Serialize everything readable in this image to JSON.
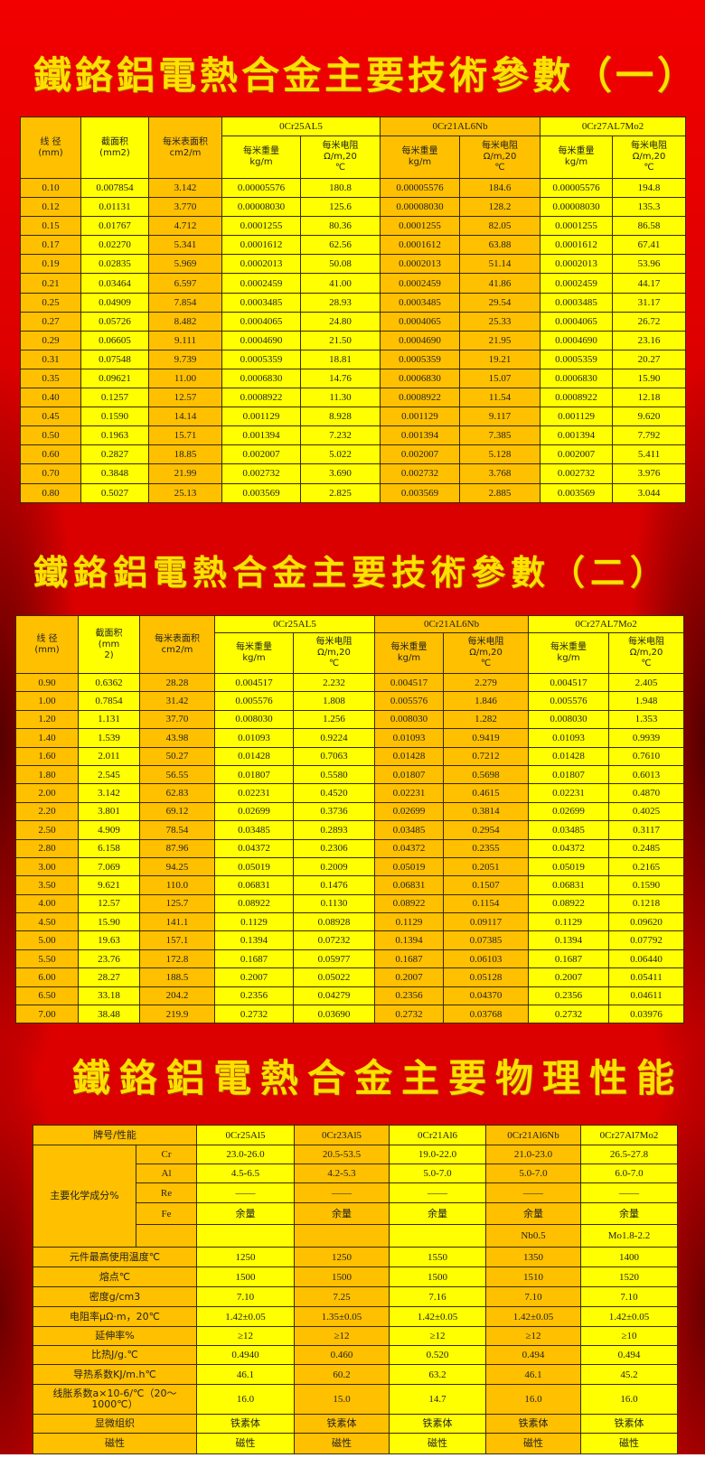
{
  "titles": {
    "t1": "鐵鉻鋁電熱合金主要技術參數（一）",
    "t2": "鐵鉻鋁電熱合金主要技術參數（二）",
    "t3": "鐵鉻鋁電熱合金主要物理性能"
  },
  "param_header": {
    "diameter": "线 径\n(mm)",
    "section_t1": "截面积\n(mm2)",
    "section_t2": "截面积\n(mm\n2)",
    "surface": "每米表面积\ncm2/m",
    "groups": [
      "0Cr25AL5",
      "0Cr21AL6Nb",
      "0Cr27AL7Mo2"
    ],
    "weight": "每米重量\nkg/m",
    "resistance": "每米电阻\nΩ/m,20\n℃"
  },
  "table1": {
    "rows": [
      [
        "0.10",
        "0.007854",
        "3.142",
        "0.00005576",
        "180.8",
        "0.00005576",
        "184.6",
        "0.00005576",
        "194.8"
      ],
      [
        "0.12",
        "0.01131",
        "3.770",
        "0.00008030",
        "125.6",
        "0.00008030",
        "128.2",
        "0.00008030",
        "135.3"
      ],
      [
        "0.15",
        "0.01767",
        "4.712",
        "0.0001255",
        "80.36",
        "0.0001255",
        "82.05",
        "0.0001255",
        "86.58"
      ],
      [
        "0.17",
        "0.02270",
        "5.341",
        "0.0001612",
        "62.56",
        "0.0001612",
        "63.88",
        "0.0001612",
        "67.41"
      ],
      [
        "0.19",
        "0.02835",
        "5.969",
        "0.0002013",
        "50.08",
        "0.0002013",
        "51.14",
        "0.0002013",
        "53.96"
      ],
      [
        "0.21",
        "0.03464",
        "6.597",
        "0.0002459",
        "41.00",
        "0.0002459",
        "41.86",
        "0.0002459",
        "44.17"
      ],
      [
        "0.25",
        "0.04909",
        "7.854",
        "0.0003485",
        "28.93",
        "0.0003485",
        "29.54",
        "0.0003485",
        "31.17"
      ],
      [
        "0.27",
        "0.05726",
        "8.482",
        "0.0004065",
        "24.80",
        "0.0004065",
        "25.33",
        "0.0004065",
        "26.72"
      ],
      [
        "0.29",
        "0.06605",
        "9.111",
        "0.0004690",
        "21.50",
        "0.0004690",
        "21.95",
        "0.0004690",
        "23.16"
      ],
      [
        "0.31",
        "0.07548",
        "9.739",
        "0.0005359",
        "18.81",
        "0.0005359",
        "19.21",
        "0.0005359",
        "20.27"
      ],
      [
        "0.35",
        "0.09621",
        "11.00",
        "0.0006830",
        "14.76",
        "0.0006830",
        "15.07",
        "0.0006830",
        "15.90"
      ],
      [
        "0.40",
        "0.1257",
        "12.57",
        "0.0008922",
        "11.30",
        "0.0008922",
        "11.54",
        "0.0008922",
        "12.18"
      ],
      [
        "0.45",
        "0.1590",
        "14.14",
        "0.001129",
        "8.928",
        "0.001129",
        "9.117",
        "0.001129",
        "9.620"
      ],
      [
        "0.50",
        "0.1963",
        "15.71",
        "0.001394",
        "7.232",
        "0.001394",
        "7.385",
        "0.001394",
        "7.792"
      ],
      [
        "0.60",
        "0.2827",
        "18.85",
        "0.002007",
        "5.022",
        "0.002007",
        "5.128",
        "0.002007",
        "5.411"
      ],
      [
        "0.70",
        "0.3848",
        "21.99",
        "0.002732",
        "3.690",
        "0.002732",
        "3.768",
        "0.002732",
        "3.976"
      ],
      [
        "0.80",
        "0.5027",
        "25.13",
        "0.003569",
        "2.825",
        "0.003569",
        "2.885",
        "0.003569",
        "3.044"
      ]
    ]
  },
  "table2": {
    "rows": [
      [
        "0.90",
        "0.6362",
        "28.28",
        "0.004517",
        "2.232",
        "0.004517",
        "2.279",
        "0.004517",
        "2.405"
      ],
      [
        "1.00",
        "0.7854",
        "31.42",
        "0.005576",
        "1.808",
        "0.005576",
        "1.846",
        "0.005576",
        "1.948"
      ],
      [
        "1.20",
        "1.131",
        "37.70",
        "0.008030",
        "1.256",
        "0.008030",
        "1.282",
        "0.008030",
        "1.353"
      ],
      [
        "1.40",
        "1.539",
        "43.98",
        "0.01093",
        "0.9224",
        "0.01093",
        "0.9419",
        "0.01093",
        "0.9939"
      ],
      [
        "1.60",
        "2.011",
        "50.27",
        "0.01428",
        "0.7063",
        "0.01428",
        "0.7212",
        "0.01428",
        "0.7610"
      ],
      [
        "1.80",
        "2.545",
        "56.55",
        "0.01807",
        "0.5580",
        "0.01807",
        "0.5698",
        "0.01807",
        "0.6013"
      ],
      [
        "2.00",
        "3.142",
        "62.83",
        "0.02231",
        "0.4520",
        "0.02231",
        "0.4615",
        "0.02231",
        "0.4870"
      ],
      [
        "2.20",
        "3.801",
        "69.12",
        "0.02699",
        "0.3736",
        "0.02699",
        "0.3814",
        "0.02699",
        "0.4025"
      ],
      [
        "2.50",
        "4.909",
        "78.54",
        "0.03485",
        "0.2893",
        "0.03485",
        "0.2954",
        "0.03485",
        "0.3117"
      ],
      [
        "2.80",
        "6.158",
        "87.96",
        "0.04372",
        "0.2306",
        "0.04372",
        "0.2355",
        "0.04372",
        "0.2485"
      ],
      [
        "3.00",
        "7.069",
        "94.25",
        "0.05019",
        "0.2009",
        "0.05019",
        "0.2051",
        "0.05019",
        "0.2165"
      ],
      [
        "3.50",
        "9.621",
        "110.0",
        "0.06831",
        "0.1476",
        "0.06831",
        "0.1507",
        "0.06831",
        "0.1590"
      ],
      [
        "4.00",
        "12.57",
        "125.7",
        "0.08922",
        "0.1130",
        "0.08922",
        "0.1154",
        "0.08922",
        "0.1218"
      ],
      [
        "4.50",
        "15.90",
        "141.1",
        "0.1129",
        "0.08928",
        "0.1129",
        "0.09117",
        "0.1129",
        "0.09620"
      ],
      [
        "5.00",
        "19.63",
        "157.1",
        "0.1394",
        "0.07232",
        "0.1394",
        "0.07385",
        "0.1394",
        "0.07792"
      ],
      [
        "5.50",
        "23.76",
        "172.8",
        "0.1687",
        "0.05977",
        "0.1687",
        "0.06103",
        "0.1687",
        "0.06440"
      ],
      [
        "6.00",
        "28.27",
        "188.5",
        "0.2007",
        "0.05022",
        "0.2007",
        "0.05128",
        "0.2007",
        "0.05411"
      ],
      [
        "6.50",
        "33.18",
        "204.2",
        "0.2356",
        "0.04279",
        "0.2356",
        "0.04370",
        "0.2356",
        "0.04611"
      ],
      [
        "7.00",
        "38.48",
        "219.9",
        "0.2732",
        "0.03690",
        "0.2732",
        "0.03768",
        "0.2732",
        "0.03976"
      ]
    ]
  },
  "table3": {
    "corner": "牌号/性能",
    "grades": [
      "0Cr25Al5",
      "0Cr23Al5",
      "0Cr21Al6",
      "0Cr21Al6Nb",
      "0Cr27Al7Mo2"
    ],
    "chem_label": "主要化学成分%",
    "chem_rows": [
      {
        "element": "Cr",
        "values": [
          "23.0-26.0",
          "20.5-53.5",
          "19.0-22.0",
          "21.0-23.0",
          "26.5-27.8"
        ]
      },
      {
        "element": "Al",
        "values": [
          "4.5-6.5",
          "4.2-5.3",
          "5.0-7.0",
          "5.0-7.0",
          "6.0-7.0"
        ]
      },
      {
        "element": "Re",
        "values": [
          "——",
          "——",
          "——",
          "——",
          "——"
        ]
      },
      {
        "element": "Fe",
        "values": [
          "余量",
          "余量",
          "余量",
          "余量",
          "余量"
        ]
      },
      {
        "element": "",
        "values": [
          "",
          "",
          "",
          "Nb0.5",
          "Mo1.8-2.2"
        ]
      }
    ],
    "props": [
      {
        "label": "元件最高使用温度℃",
        "values": [
          "1250",
          "1250",
          "1550",
          "1350",
          "1400"
        ]
      },
      {
        "label": "熔点℃",
        "values": [
          "1500",
          "1500",
          "1500",
          "1510",
          "1520"
        ]
      },
      {
        "label": "密度g/cm3",
        "values": [
          "7.10",
          "7.25",
          "7.16",
          "7.10",
          "7.10"
        ]
      },
      {
        "label": "电阻率μΩ·m，20℃",
        "values": [
          "1.42±0.05",
          "1.35±0.05",
          "1.42±0.05",
          "1.42±0.05",
          "1.42±0.05"
        ]
      },
      {
        "label": "延伸率%",
        "values": [
          "≥12",
          "≥12",
          "≥12",
          "≥12",
          "≥10"
        ]
      },
      {
        "label": "比热J/g.℃",
        "values": [
          "0.4940",
          "0.460",
          "0.520",
          "0.494",
          "0.494"
        ]
      },
      {
        "label": "导热系数KJ/m.h℃",
        "values": [
          "46.1",
          "60.2",
          "63.2",
          "46.1",
          "45.2"
        ]
      },
      {
        "label": "线胀系数a×10-6/℃（20～\n1000℃）",
        "values": [
          "16.0",
          "15.0",
          "14.7",
          "16.0",
          "16.0"
        ]
      },
      {
        "label": "显微组织",
        "values": [
          "铁素体",
          "铁素体",
          "铁素体",
          "铁素体",
          "铁素体"
        ]
      },
      {
        "label": "磁性",
        "values": [
          "磁性",
          "磁性",
          "磁性",
          "磁性",
          "磁性"
        ]
      }
    ]
  },
  "colors": {
    "background": "#e00000",
    "title": "#ffe000",
    "cell_orange": "#ffc000",
    "cell_yellow": "#ffff00"
  }
}
